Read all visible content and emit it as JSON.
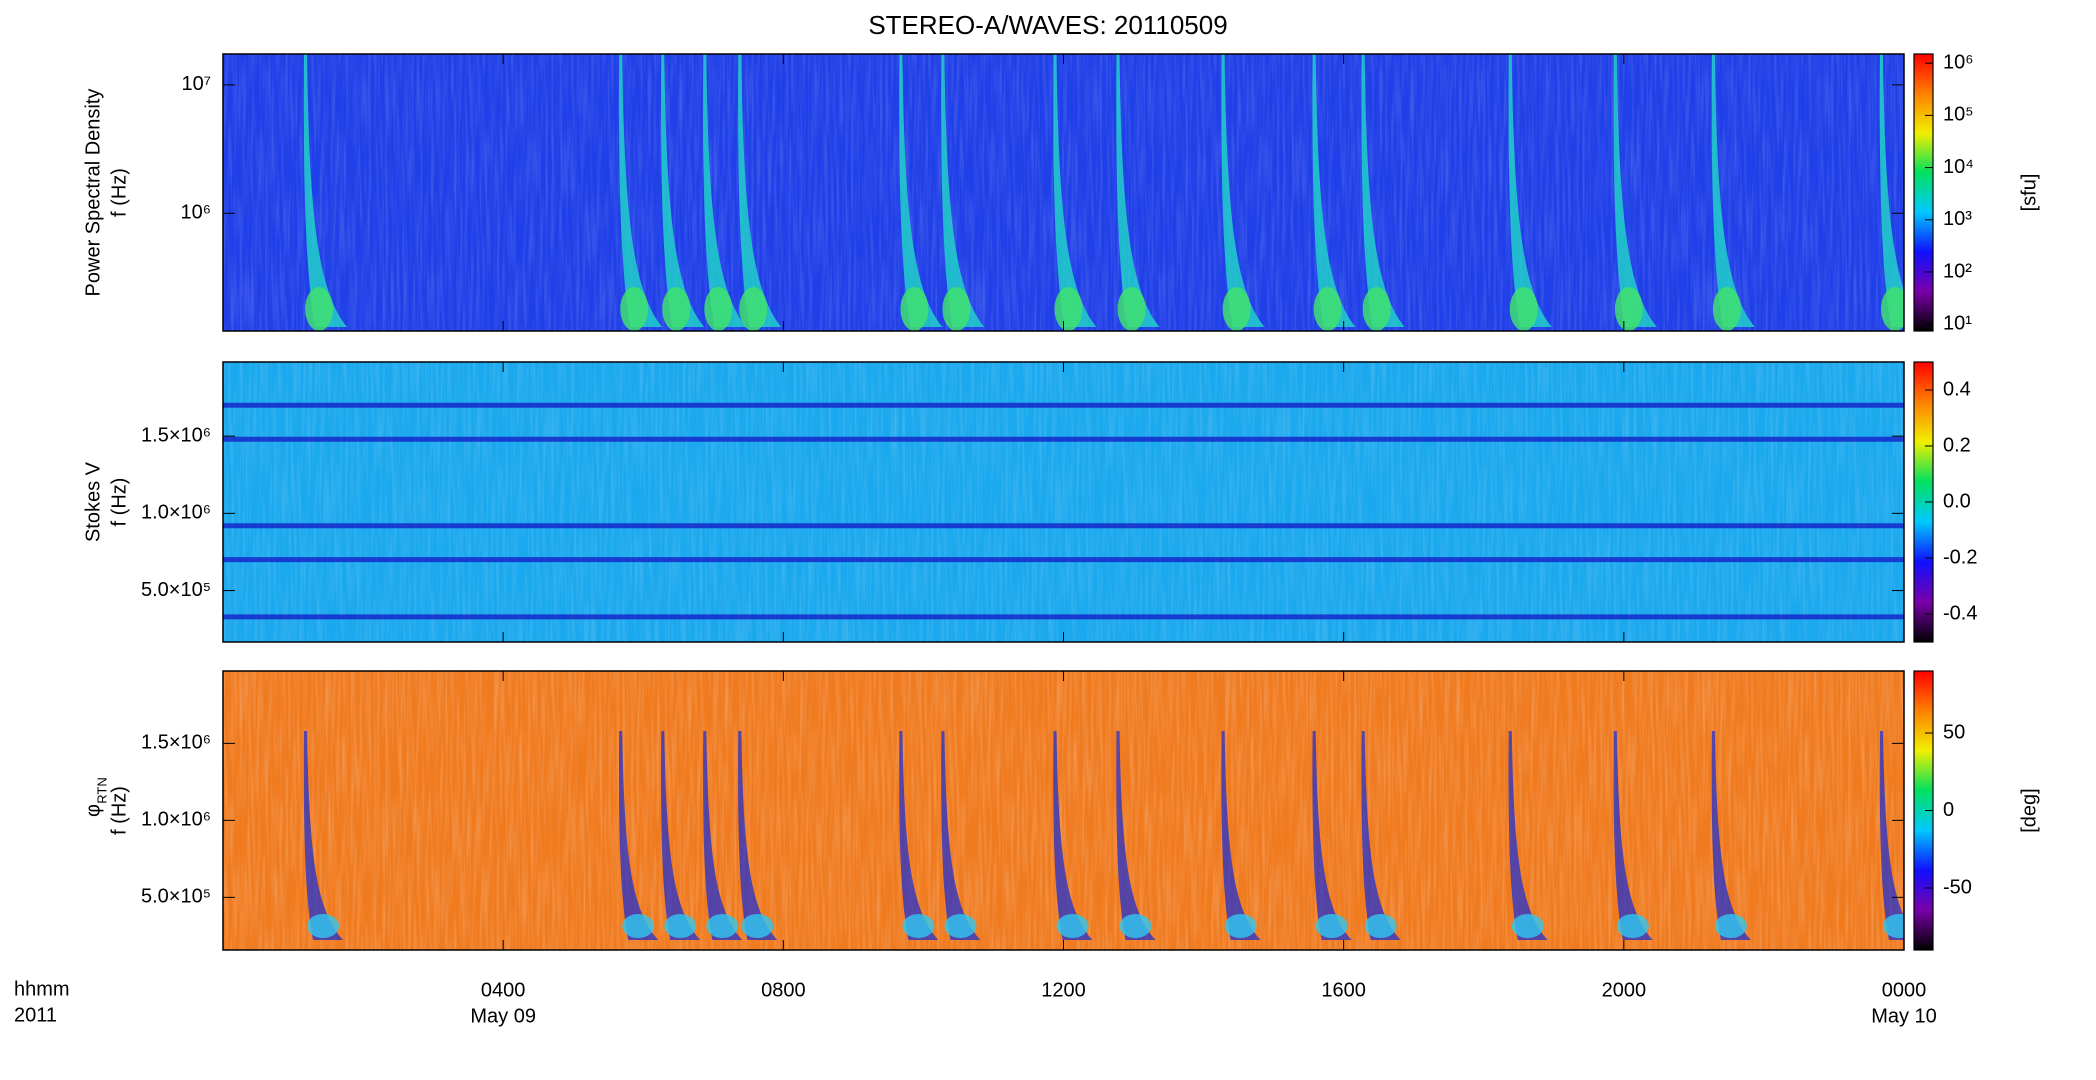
{
  "title": "STEREO-A/WAVES: 20110509",
  "x_label": [
    "hhmm",
    "2011"
  ],
  "date_labels": [
    {
      "value": 4,
      "label": "May 09"
    },
    {
      "value": 24,
      "label": "May 10"
    }
  ],
  "chart_data": [
    {
      "type": "spectrogram",
      "ylabel": [
        "Power Spectral Density",
        "f (Hz)"
      ],
      "xlim": [
        0,
        24
      ],
      "ylim": [
        121000,
        17400000
      ],
      "ylog": true,
      "yticks": [
        {
          "value": 1000000,
          "label": "10⁶"
        },
        {
          "value": 10000000,
          "label": "10⁷"
        }
      ],
      "background": "#1f3fe8",
      "bursts": [
        1.2,
        5.7,
        6.3,
        6.9,
        7.4,
        9.7,
        10.3,
        11.9,
        12.8,
        14.3,
        15.6,
        16.3,
        18.4,
        19.9,
        21.3,
        23.7
      ],
      "clim": [
        7.4,
        1500000
      ],
      "clog": true,
      "clabel": "[sfu]",
      "cticks": [
        {
          "value": 10,
          "label": "10¹"
        },
        {
          "value": 100,
          "label": "10²"
        },
        {
          "value": 1000,
          "label": "10³"
        },
        {
          "value": 10000,
          "label": "10⁴"
        },
        {
          "value": 100000,
          "label": "10⁵"
        },
        {
          "value": 1000000,
          "label": "10⁶"
        }
      ],
      "colormap": [
        "#000000",
        "#7a00a8",
        "#1010ff",
        "#00c8ff",
        "#00e060",
        "#f0f000",
        "#ff8000",
        "#ff0000"
      ]
    },
    {
      "type": "spectrogram",
      "ylabel": [
        "Stokes V",
        "f (Hz)"
      ],
      "xlim": [
        0,
        24
      ],
      "ylim": [
        167000,
        1980000
      ],
      "ylog": false,
      "yticks": [
        {
          "value": 500000,
          "label": "5.0×10⁵"
        },
        {
          "value": 1000000,
          "label": "1.0×10⁶"
        },
        {
          "value": 1500000,
          "label": "1.5×10⁶"
        }
      ],
      "background": "#1aa8ee",
      "bands": [
        1700000,
        1480000,
        920000,
        700000,
        330000
      ],
      "clim": [
        -0.5,
        0.5
      ],
      "clog": false,
      "cticks": [
        -0.4,
        -0.2,
        {
          "value": 0,
          "label": "0.0"
        },
        0.2,
        0.4
      ],
      "colormap": [
        "#000000",
        "#7a00a8",
        "#1010ff",
        "#00c8ff",
        "#00e060",
        "#f0f000",
        "#ff8000",
        "#ff0000"
      ]
    },
    {
      "type": "spectrogram",
      "ylabel": [
        "φ",
        "f (Hz)"
      ],
      "ylabel_subscript": "RTN",
      "xlim": [
        0,
        24
      ],
      "ylim": [
        158000,
        1970000
      ],
      "ylog": false,
      "yticks": [
        {
          "value": 500000,
          "label": "5.0×10⁵"
        },
        {
          "value": 1000000,
          "label": "1.0×10⁶"
        },
        {
          "value": 1500000,
          "label": "1.5×10⁶"
        }
      ],
      "xticks": [
        {
          "value": 4,
          "label": "0400"
        },
        {
          "value": 8,
          "label": "0800"
        },
        {
          "value": 12,
          "label": "1200"
        },
        {
          "value": 16,
          "label": "1600"
        },
        {
          "value": 20,
          "label": "2000"
        },
        {
          "value": 24,
          "label": "0000"
        }
      ],
      "background": "#f07a1e",
      "clim": [
        -90,
        90
      ],
      "clog": false,
      "clabel": "[deg]",
      "cticks": [
        -50,
        0,
        50
      ],
      "colormap": [
        "#000000",
        "#7a00a8",
        "#1010ff",
        "#00c8ff",
        "#00e060",
        "#f0f000",
        "#ff8000",
        "#ff0000"
      ]
    }
  ]
}
